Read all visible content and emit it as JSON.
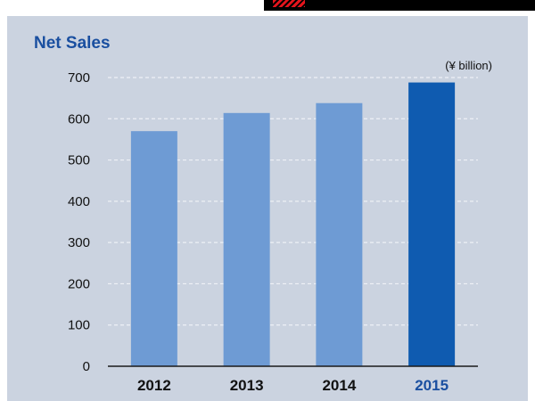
{
  "colors": {
    "panel_background": "#cbd3e0",
    "title": "#1a4fa0",
    "bar_default": "#6e9bd4",
    "bar_highlight": "#0f5bb0",
    "gridline": "#eef1f6",
    "axis": "#1a1a1a"
  },
  "chart_data": {
    "type": "bar",
    "title": "Net Sales",
    "unit_label": "(¥ billion)",
    "xlabel": "",
    "ylabel": "",
    "categories": [
      "2012",
      "2013",
      "2014",
      "2015"
    ],
    "values": [
      570,
      614,
      638,
      688
    ],
    "highlight_index": 3,
    "ylim": [
      0,
      700
    ],
    "yticks": [
      0,
      100,
      200,
      300,
      400,
      500,
      600,
      700
    ],
    "grid": true,
    "legend": "none"
  }
}
